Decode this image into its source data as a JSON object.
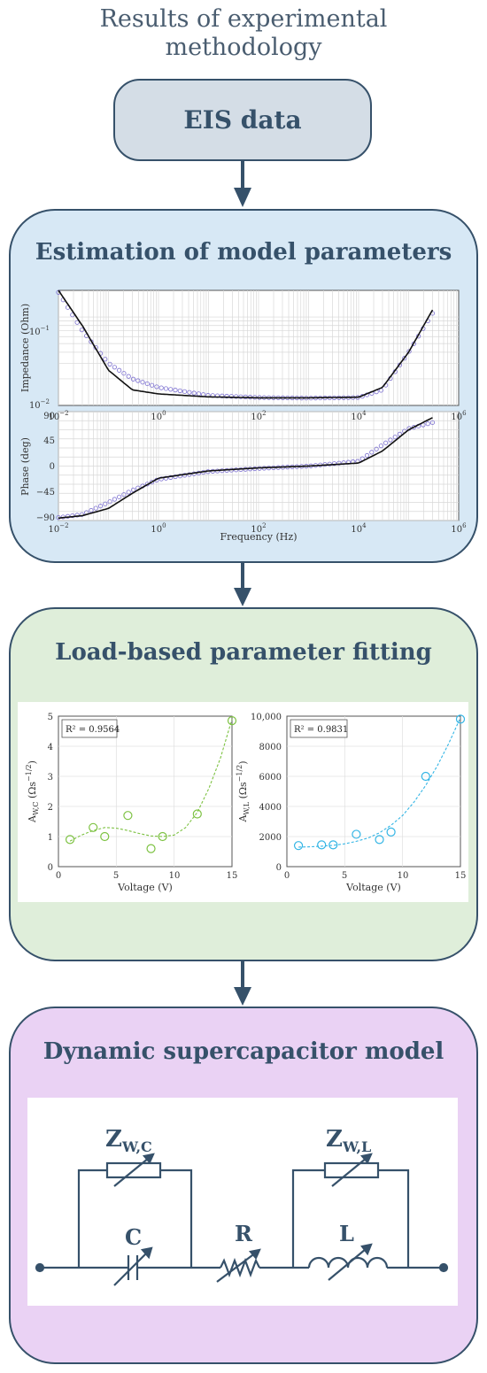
{
  "header": {
    "line1": "Results of experimental",
    "line2": "methodology"
  },
  "eis": {
    "label": "EIS data"
  },
  "panel1": {
    "title": "Estimation of model parameters",
    "top_ylabel": "Impedance (Ohm)",
    "bottom_ylabel": "Phase (deg)",
    "xlabel": "Frequency (Hz)",
    "top_yticks": [
      "10",
      "10",
      "10"
    ],
    "top_ytick_exp": [
      "−1",
      "−2",
      ""
    ],
    "phase_ticks": [
      "90",
      "45",
      "0",
      "−45",
      "−90"
    ],
    "freq_ticks": [
      "10",
      "10",
      "10",
      "10",
      "10"
    ],
    "freq_exp": [
      "−2",
      "0",
      "2",
      "4",
      "6"
    ]
  },
  "panel2": {
    "title": "Load-based parameter fitting",
    "left": {
      "r2": "R² = 0.9564",
      "ylabel": "A",
      "ylabel_sub": "W,C",
      "ylabel_unit": "(Ωs",
      "ylabel_exp": "−1/2",
      "xlabel": "Voltage (V)",
      "yticks": [
        "5",
        "4",
        "3",
        "2",
        "1",
        "0"
      ],
      "xticks": [
        "0",
        "5",
        "10",
        "15"
      ]
    },
    "right": {
      "r2": "R² = 0.9831",
      "ylabel": "A",
      "ylabel_sub": "W,L",
      "ylabel_unit": "(Ωs",
      "ylabel_exp": "−1/2",
      "xlabel": "Voltage (V)",
      "yticks": [
        "10,000",
        "8000",
        "6000",
        "4000",
        "2000",
        "0"
      ],
      "xticks": [
        "0",
        "5",
        "10",
        "15"
      ]
    }
  },
  "panel3": {
    "title": "Dynamic supercapacitor model",
    "zwc": "Z",
    "zwc_sub": "W,C",
    "zwl": "Z",
    "zwl_sub": "W,L",
    "c": "C",
    "r": "R",
    "l": "L"
  },
  "colors": {
    "dark_blue": "#36516a",
    "panel1_bg": "#d7e8f5",
    "panel2_bg": "#dfeeda",
    "panel3_bg": "#ead2f4",
    "green": "#7dc242",
    "cyan": "#33b5e5",
    "purple_markers": "#7b6fd0"
  },
  "chart_data": [
    {
      "type": "line",
      "xscale": "log",
      "yscale": "log",
      "xlim": [
        0.01,
        1000000
      ],
      "ylim": [
        0.01,
        0.2
      ],
      "ylabel": "Impedance (Ohm)",
      "grid": true,
      "series": [
        {
          "x": [
            0.01,
            0.03,
            0.1,
            0.3,
            1,
            10,
            100,
            1000,
            10000,
            30000,
            100000,
            300000
          ],
          "values": [
            0.2,
            0.08,
            0.025,
            0.015,
            0.0135,
            0.0125,
            0.0122,
            0.0122,
            0.0124,
            0.016,
            0.04,
            0.12
          ]
        },
        {
          "x": [
            0.01,
            0.03,
            0.1,
            0.3,
            1,
            10,
            100,
            1000,
            10000,
            30000,
            100000,
            300000
          ],
          "values": [
            0.19,
            0.07,
            0.03,
            0.02,
            0.016,
            0.013,
            0.0123,
            0.0121,
            0.0123,
            0.015,
            0.04,
            0.11
          ]
        }
      ]
    },
    {
      "type": "line",
      "xscale": "log",
      "xlim": [
        0.01,
        1000000
      ],
      "ylim": [
        -90,
        90
      ],
      "ylabel": "Phase (deg)",
      "xlabel": "Frequency (Hz)",
      "grid": true,
      "series": [
        {
          "x": [
            0.01,
            0.03,
            0.1,
            0.3,
            1,
            10,
            100,
            1000,
            10000,
            30000,
            100000,
            300000
          ],
          "values": [
            -86,
            -82,
            -70,
            -45,
            -20,
            -8,
            -3,
            0,
            5,
            25,
            60,
            80
          ]
        },
        {
          "x": [
            0.01,
            0.03,
            0.1,
            0.3,
            1,
            10,
            100,
            1000,
            10000,
            30000,
            100000,
            300000
          ],
          "values": [
            -85,
            -80,
            -60,
            -40,
            -22,
            -9,
            -4,
            0,
            8,
            35,
            62,
            72
          ]
        }
      ]
    },
    {
      "type": "scatter",
      "xlim": [
        0,
        15
      ],
      "ylim": [
        0,
        5
      ],
      "xlabel": "Voltage (V)",
      "grid": true,
      "points": {
        "x": [
          1,
          3,
          4,
          6,
          8,
          9,
          12,
          15
        ],
        "y": [
          0.9,
          1.3,
          1.0,
          1.7,
          0.6,
          1.0,
          1.75,
          4.85
        ]
      },
      "fit": {
        "x": [
          1,
          2,
          3,
          4,
          5,
          6,
          7,
          8,
          9,
          10,
          11,
          12,
          13,
          14,
          15
        ],
        "y": [
          0.85,
          1.05,
          1.2,
          1.3,
          1.28,
          1.2,
          1.1,
          1.02,
          1.0,
          1.05,
          1.3,
          1.8,
          2.6,
          3.6,
          4.9
        ]
      }
    },
    {
      "type": "scatter",
      "xlim": [
        0,
        15
      ],
      "ylim": [
        0,
        10000
      ],
      "xlabel": "Voltage (V)",
      "grid": true,
      "points": {
        "x": [
          1,
          3,
          4,
          6,
          8,
          9,
          12,
          15
        ],
        "y": [
          1400,
          1450,
          1450,
          2150,
          1800,
          2300,
          6000,
          9800
        ]
      },
      "fit": {
        "x": [
          1,
          2,
          3,
          4,
          5,
          6,
          7,
          8,
          9,
          10,
          11,
          12,
          13,
          14,
          15
        ],
        "y": [
          1300,
          1320,
          1360,
          1420,
          1520,
          1680,
          1900,
          2250,
          2750,
          3400,
          4300,
          5400,
          6700,
          8200,
          9900
        ]
      }
    }
  ]
}
